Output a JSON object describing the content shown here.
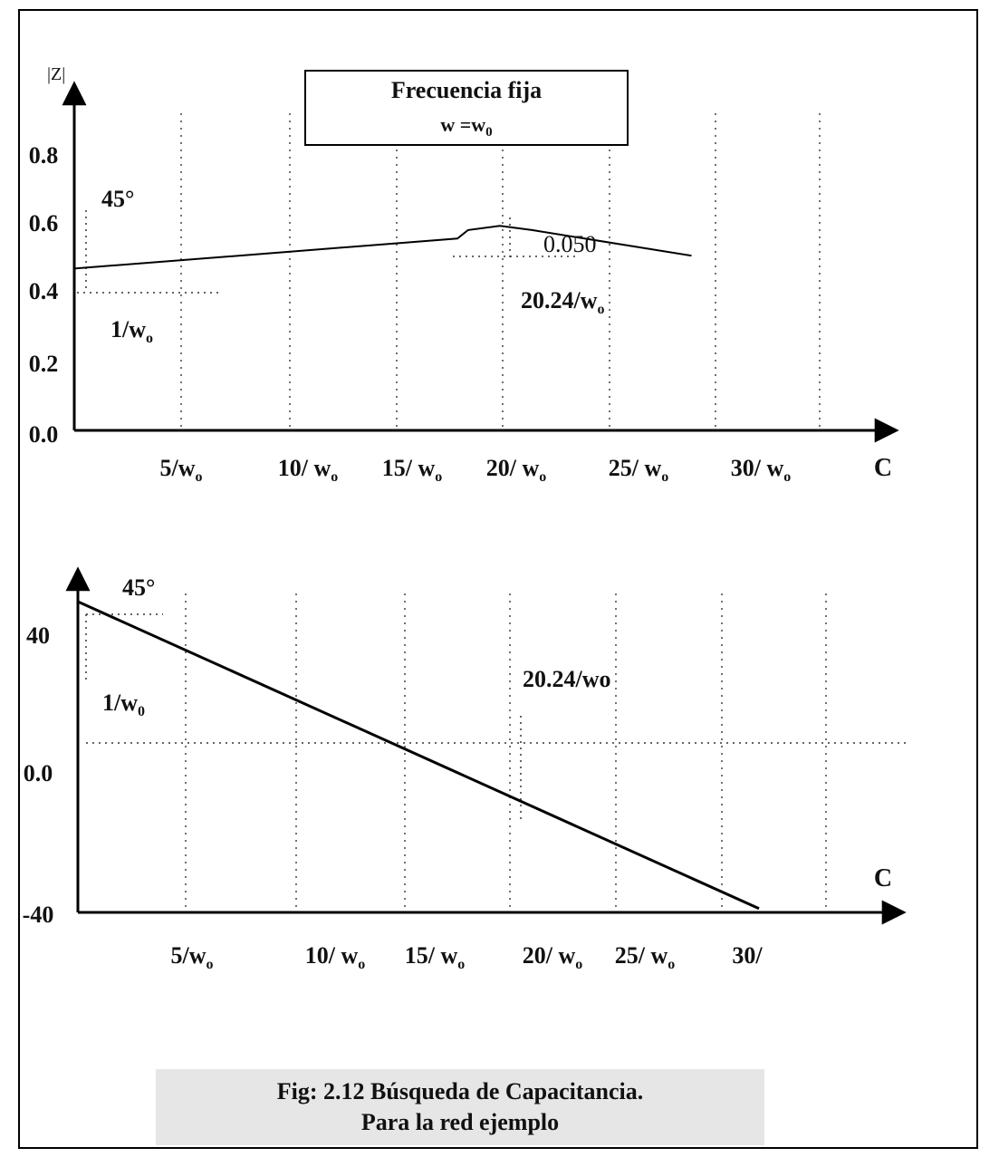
{
  "chart_data": [
    {
      "type": "line",
      "title": "Frecuencia fija",
      "subtitle": "w =w0",
      "ylabel": "|Z|",
      "xlabel": "C",
      "y_ticks": [
        "0.8",
        "0.6",
        "0.4",
        "0.2",
        "0.0"
      ],
      "x_ticks": [
        "5/wo",
        "10/ wo",
        "15/ wo",
        "20/ wo",
        "25/ wo",
        "30/ wo"
      ],
      "ylim": [
        0,
        0.9
      ],
      "xlim": [
        0,
        38
      ],
      "grid": "vertical-dotted",
      "series": [
        {
          "x": [
            0,
            18,
            18.5,
            20,
            21.5,
            29
          ],
          "y": [
            0.41,
            0.48,
            0.5,
            0.51,
            0.5,
            0.44
          ]
        }
      ],
      "annotations": [
        {
          "text": "45°"
        },
        {
          "text": "1/wo"
        },
        {
          "text": "0.050"
        },
        {
          "text": "20.24/wo"
        }
      ]
    },
    {
      "type": "line",
      "xlabel": "C",
      "y_ticks": [
        "40",
        "0.0",
        "-40"
      ],
      "x_ticks": [
        "5/wo",
        "10/ wo",
        "15/ wo",
        "20/ wo",
        "25/ wo",
        "30/"
      ],
      "ylim": [
        -40,
        55
      ],
      "xlim": [
        0,
        38
      ],
      "grid": "vertical-dotted",
      "series": [
        {
          "x": [
            0,
            32
          ],
          "y": [
            45,
            -32
          ]
        }
      ],
      "annotations": [
        {
          "text": "45°"
        },
        {
          "text": "1/w0"
        },
        {
          "text": "20.24/wo"
        }
      ]
    }
  ],
  "caption": {
    "line1": "Fig: 2.12  Búsqueda de Capacitancia.",
    "line2": "Para la red ejemplo"
  }
}
